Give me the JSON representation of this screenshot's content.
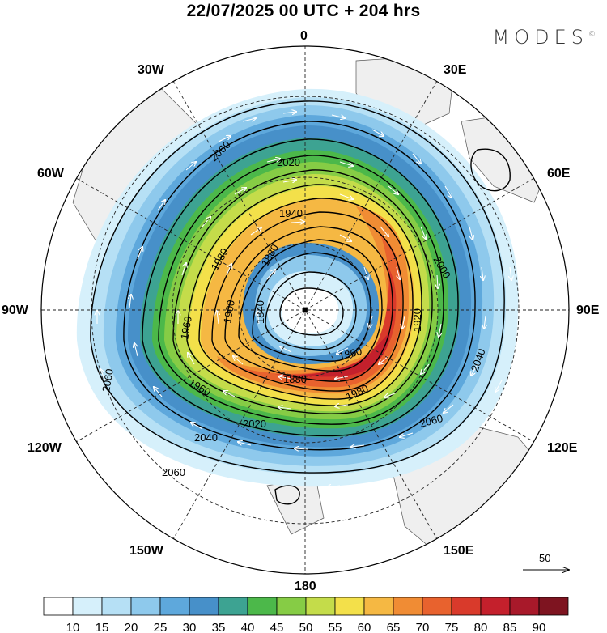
{
  "title": "22/07/2025  00 UTC  + 204 hrs",
  "brand": "MODES",
  "brand_mark": "©",
  "longitude_labels": {
    "top": "0",
    "top_right": "30E",
    "right_upper": "60E",
    "right": "90E",
    "right_lower": "120E",
    "bottom_right": "150E",
    "bottom": "180",
    "bottom_left": "150W",
    "left_lower": "120W",
    "left": "90W",
    "left_upper": "60W",
    "top_left": "30W"
  },
  "contour_labels": [
    "2060",
    "2020",
    "1940",
    "1980",
    "1880",
    "1840",
    "1900",
    "1960",
    "1860",
    "1920",
    "2000",
    "2040",
    "1880",
    "1980",
    "2020",
    "2060",
    "2040",
    "2060",
    "2060",
    "1960"
  ],
  "reference_vector": {
    "value": "50"
  },
  "colorbar": {
    "ticks": [
      "10",
      "15",
      "20",
      "25",
      "30",
      "35",
      "40",
      "45",
      "50",
      "55",
      "60",
      "65",
      "70",
      "75",
      "80",
      "85",
      "90"
    ],
    "colors": [
      "#ffffff",
      "#d6f0fb",
      "#b6e0f5",
      "#8ec9ec",
      "#5ea8dc",
      "#4790c9",
      "#3da392",
      "#4cb84a",
      "#86cc45",
      "#c4dc4a",
      "#f3e04a",
      "#f5b843",
      "#f08c34",
      "#e8622e",
      "#d93a2b",
      "#c4202c",
      "#a8192a",
      "#7e1420"
    ]
  },
  "chart_data": {
    "type": "polar-stereographic map",
    "variable_shaded": "wind speed",
    "contour_values": [
      1840,
      1860,
      1880,
      1900,
      1920,
      1940,
      1960,
      1980,
      2000,
      2020,
      2040,
      2060
    ],
    "shading_levels": [
      10,
      15,
      20,
      25,
      30,
      35,
      40,
      45,
      50,
      55,
      60,
      65,
      70,
      75,
      80,
      85,
      90
    ],
    "center": "pole",
    "meridians": [
      "0",
      "30E",
      "60E",
      "90E",
      "120E",
      "150E",
      "180",
      "150W",
      "120W",
      "90W",
      "60W",
      "30W"
    ]
  }
}
